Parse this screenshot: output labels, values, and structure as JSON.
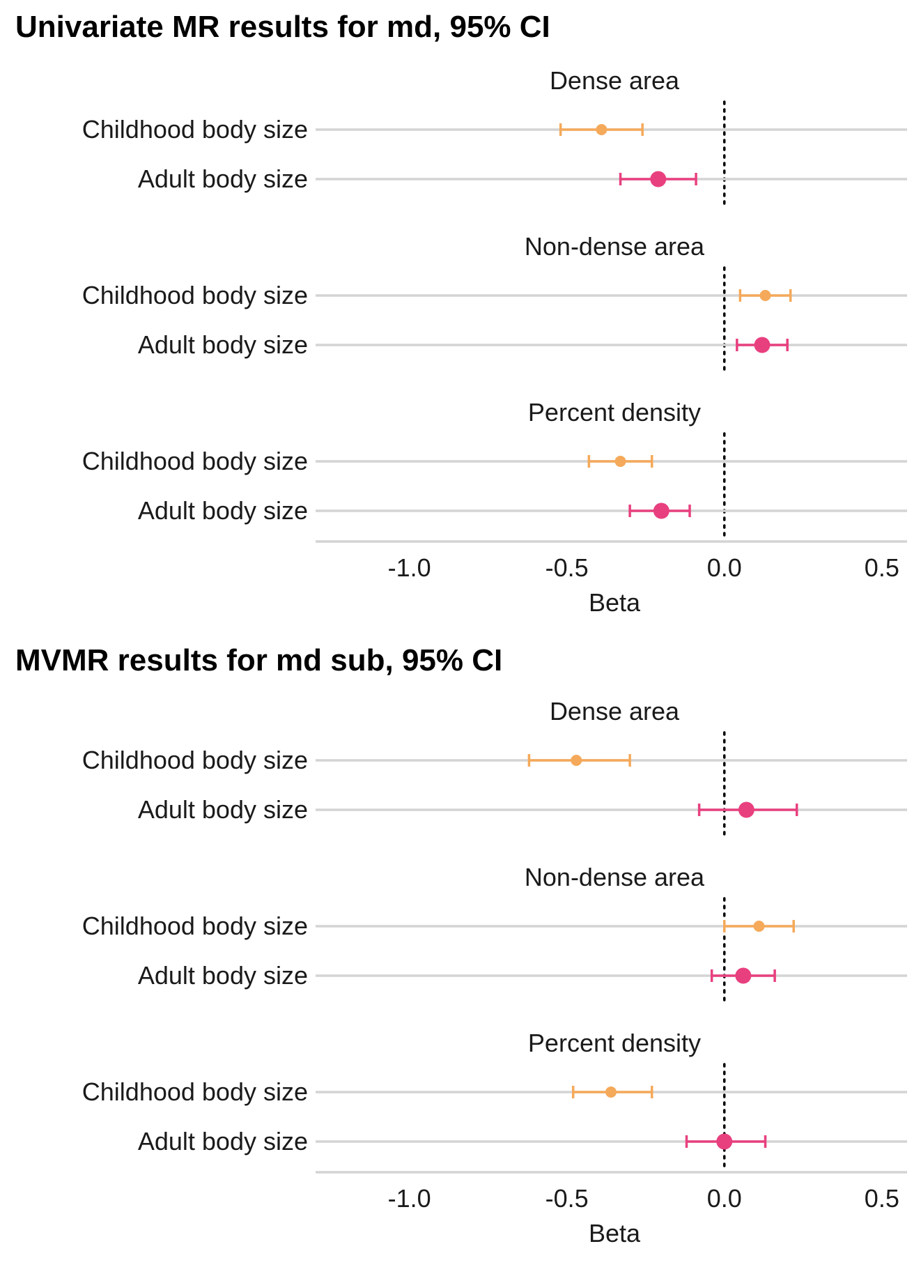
{
  "chart_data": [
    {
      "type": "forest",
      "title": "Univariate MR results for md, 95% CI",
      "xlabel": "Beta",
      "xlim": [
        -1.28,
        0.58
      ],
      "xticks": [
        -1.0,
        -0.5,
        0.0,
        0.5
      ],
      "xtick_labels": [
        "-1.0",
        "-0.5",
        "0.0",
        "0.5"
      ],
      "reference_line": 0,
      "categories": [
        "Childhood body size",
        "Adult body size"
      ],
      "category_colors": [
        "#f5a95a",
        "#e8407f"
      ],
      "facets": [
        {
          "title": "Dense area",
          "rows": [
            {
              "label": "Childhood body size",
              "beta": -0.39,
              "lower": -0.52,
              "upper": -0.26
            },
            {
              "label": "Adult body size",
              "beta": -0.21,
              "lower": -0.33,
              "upper": -0.09
            }
          ]
        },
        {
          "title": "Non-dense area",
          "rows": [
            {
              "label": "Childhood body size",
              "beta": 0.13,
              "lower": 0.05,
              "upper": 0.21
            },
            {
              "label": "Adult body size",
              "beta": 0.12,
              "lower": 0.04,
              "upper": 0.2
            }
          ]
        },
        {
          "title": "Percent density",
          "rows": [
            {
              "label": "Childhood body size",
              "beta": -0.33,
              "lower": -0.43,
              "upper": -0.23
            },
            {
              "label": "Adult body size",
              "beta": -0.2,
              "lower": -0.3,
              "upper": -0.11
            }
          ]
        }
      ]
    },
    {
      "type": "forest",
      "title": "MVMR results for md sub, 95% CI",
      "xlabel": "Beta",
      "xlim": [
        -1.28,
        0.58
      ],
      "xticks": [
        -1.0,
        -0.5,
        0.0,
        0.5
      ],
      "xtick_labels": [
        "-1.0",
        "-0.5",
        "0.0",
        "0.5"
      ],
      "reference_line": 0,
      "categories": [
        "Childhood body size",
        "Adult body size"
      ],
      "category_colors": [
        "#f5a95a",
        "#e8407f"
      ],
      "facets": [
        {
          "title": "Dense area",
          "rows": [
            {
              "label": "Childhood body size",
              "beta": -0.47,
              "lower": -0.62,
              "upper": -0.3
            },
            {
              "label": "Adult body size",
              "beta": 0.07,
              "lower": -0.08,
              "upper": 0.23
            }
          ]
        },
        {
          "title": "Non-dense area",
          "rows": [
            {
              "label": "Childhood body size",
              "beta": 0.11,
              "lower": 0.0,
              "upper": 0.22
            },
            {
              "label": "Adult body size",
              "beta": 0.06,
              "lower": -0.04,
              "upper": 0.16
            }
          ]
        },
        {
          "title": "Percent density",
          "rows": [
            {
              "label": "Childhood body size",
              "beta": -0.36,
              "lower": -0.48,
              "upper": -0.23
            },
            {
              "label": "Adult body size",
              "beta": 0.0,
              "lower": -0.12,
              "upper": 0.13
            }
          ]
        }
      ]
    }
  ]
}
